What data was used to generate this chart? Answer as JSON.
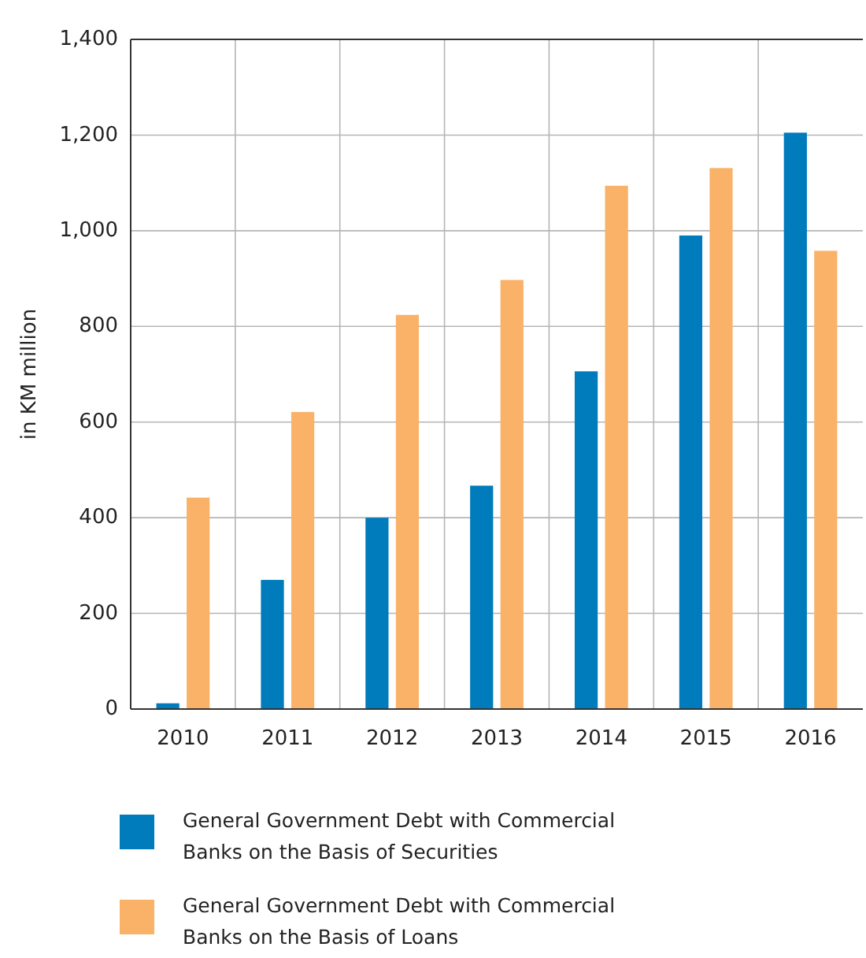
{
  "chart_data": {
    "type": "bar",
    "ylabel": "in KM million",
    "categories": [
      "2010",
      "2011",
      "2012",
      "2013",
      "2014",
      "2015",
      "2016"
    ],
    "series": [
      {
        "name": "General Government Debt with Commercial Banks on the Basis of Securities",
        "color": "#007bbb",
        "values": [
          12,
          270,
          400,
          467,
          706,
          990,
          1205
        ]
      },
      {
        "name": "General Government Debt with Commercial Banks on the Basis of Loans",
        "color": "#f9b268",
        "values": [
          442,
          621,
          824,
          897,
          1094,
          1131,
          958
        ]
      }
    ],
    "ylim": [
      0,
      1400
    ],
    "yticks": [
      {
        "value": 0,
        "label": "0"
      },
      {
        "value": 200,
        "label": "200"
      },
      {
        "value": 400,
        "label": "400"
      },
      {
        "value": 600,
        "label": "600"
      },
      {
        "value": 800,
        "label": "800"
      },
      {
        "value": 1000,
        "label": "1,000"
      },
      {
        "value": 1200,
        "label": "1,200"
      },
      {
        "value": 1400,
        "label": "1,400"
      }
    ],
    "grid": true,
    "legend": "bottom"
  }
}
